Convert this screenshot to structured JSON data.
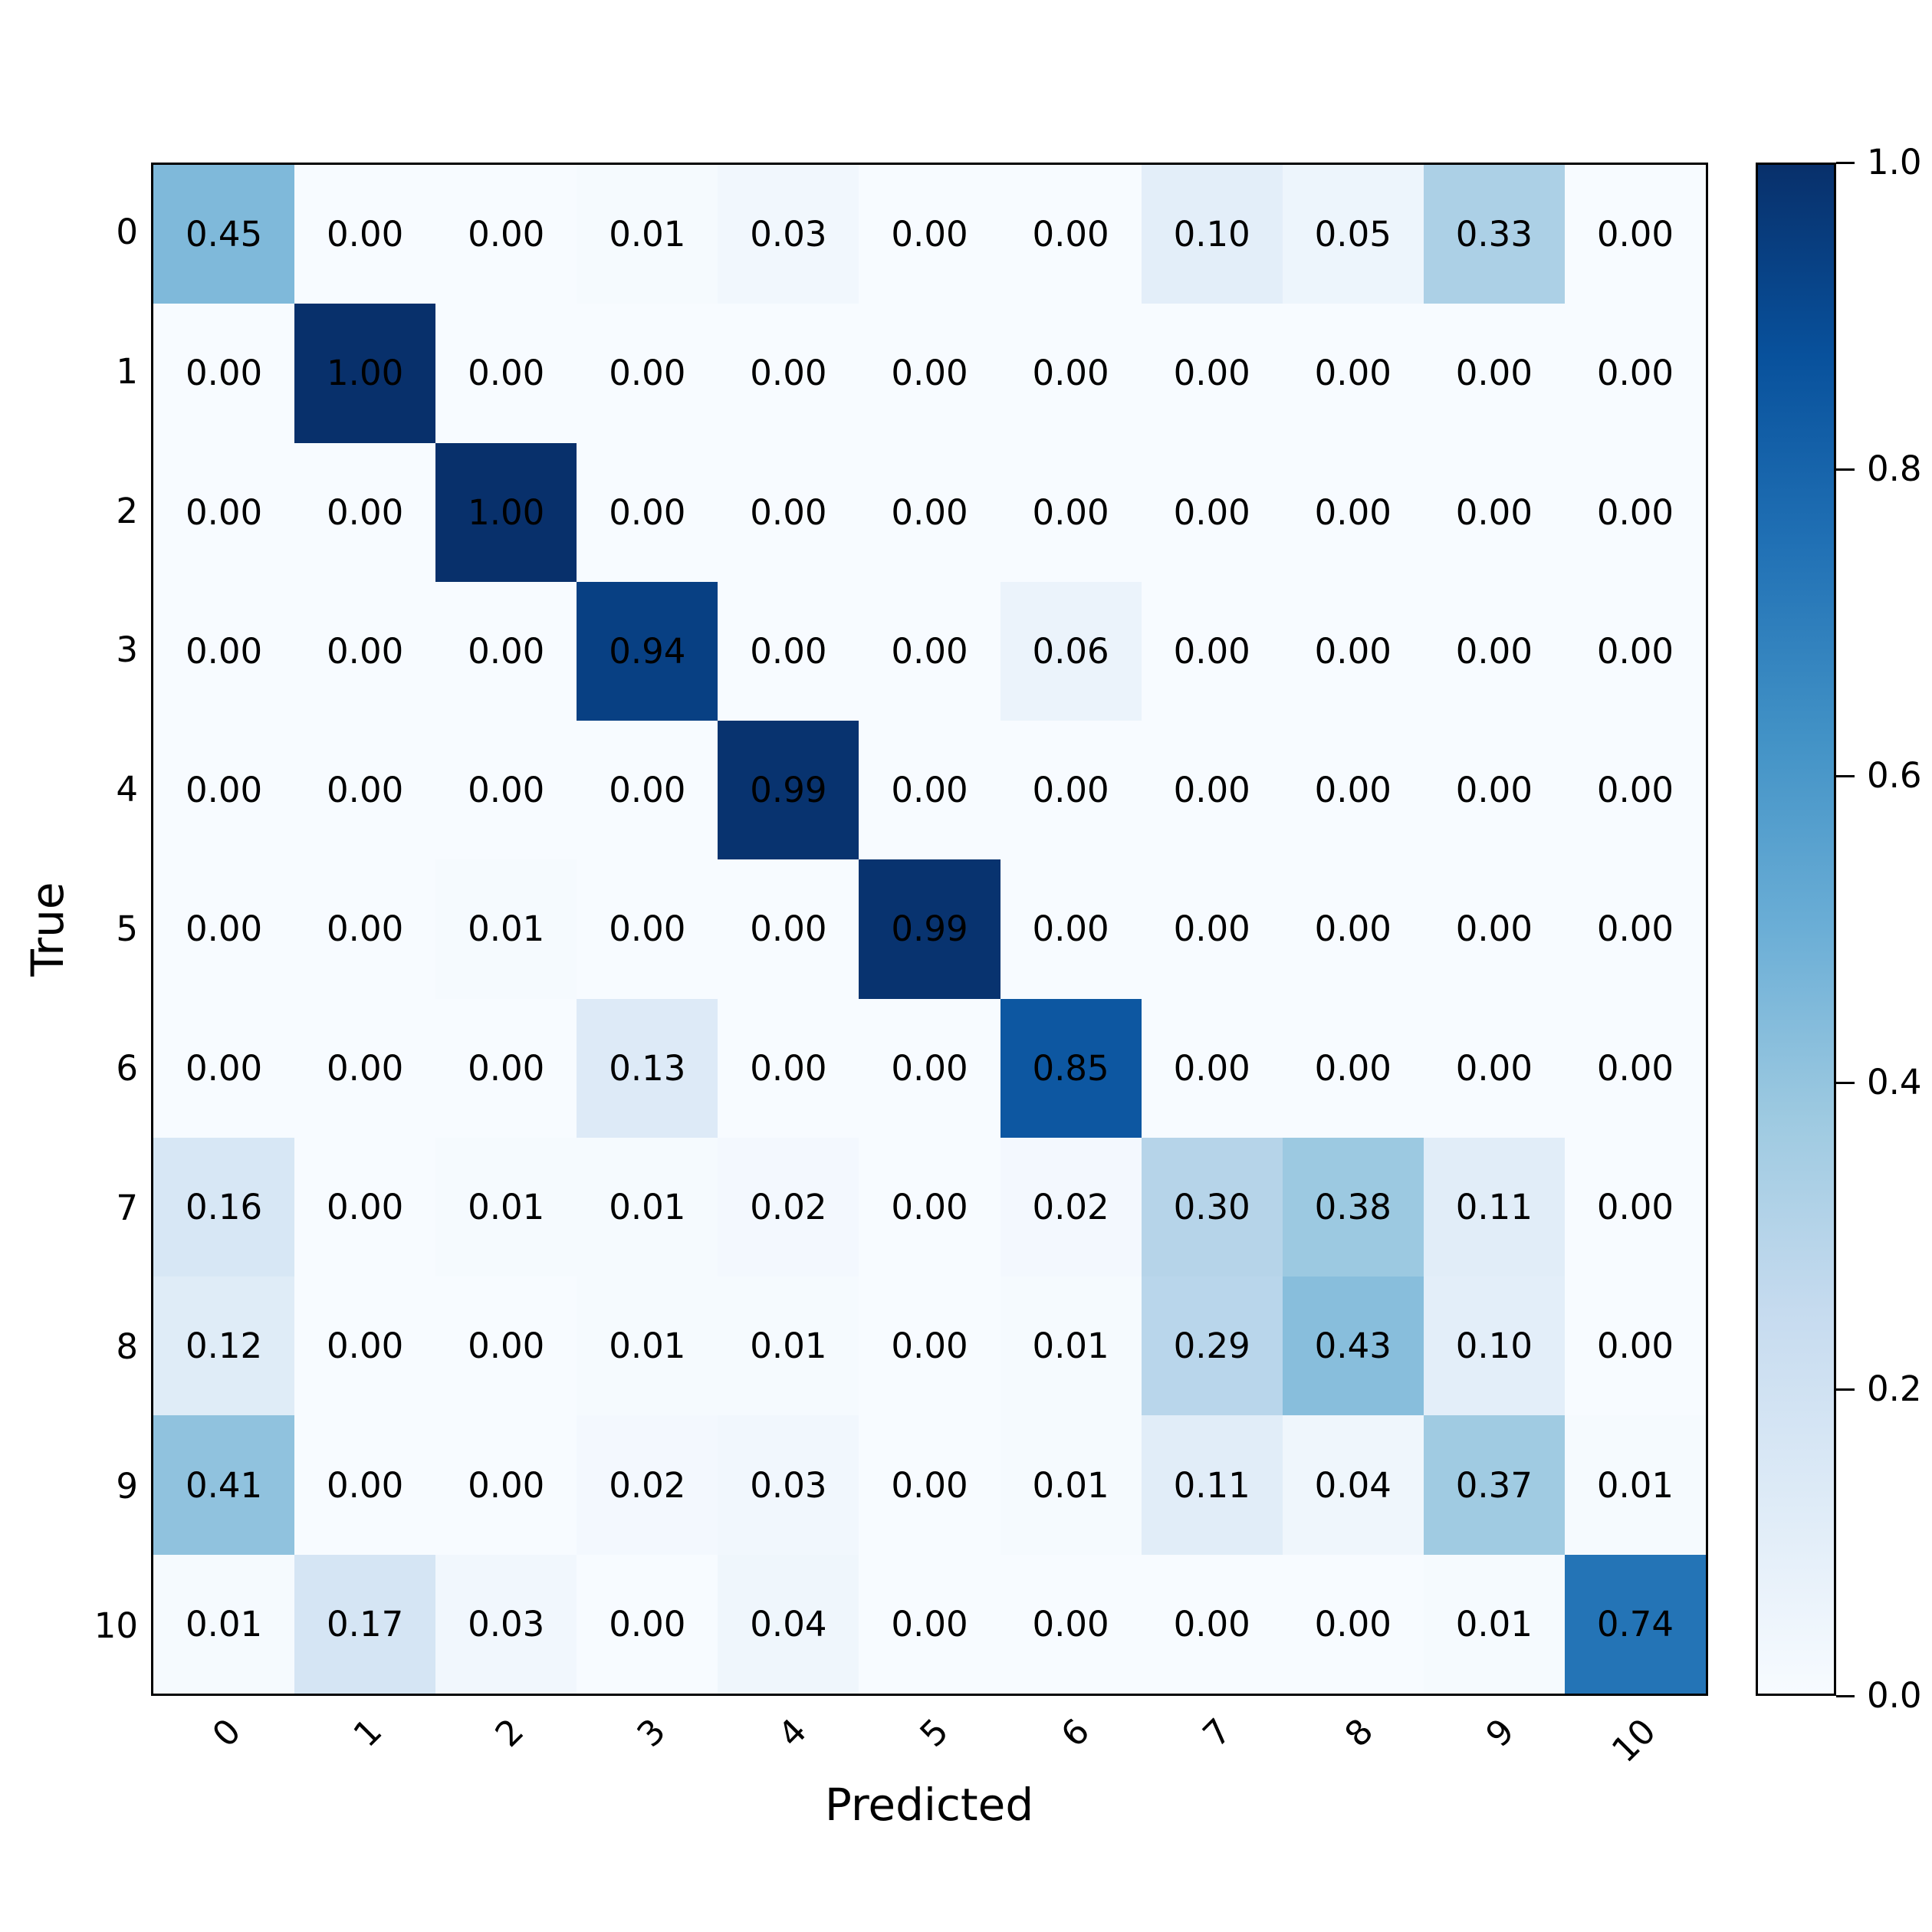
{
  "colors": {
    "background": "#ffffff",
    "cell_text": "#000000",
    "spine": "#000000"
  },
  "chart_data": {
    "type": "heatmap",
    "title": "",
    "xlabel": "Predicted",
    "ylabel": "True",
    "x_tick_labels": [
      "0",
      "1",
      "2",
      "3",
      "4",
      "5",
      "6",
      "7",
      "8",
      "9",
      "10"
    ],
    "y_tick_labels": [
      "0",
      "1",
      "2",
      "3",
      "4",
      "5",
      "6",
      "7",
      "8",
      "9",
      "10"
    ],
    "value_decimals": 2,
    "matrix": [
      [
        0.45,
        0.0,
        0.0,
        0.01,
        0.03,
        0.0,
        0.0,
        0.1,
        0.05,
        0.33,
        0.0
      ],
      [
        0.0,
        1.0,
        0.0,
        0.0,
        0.0,
        0.0,
        0.0,
        0.0,
        0.0,
        0.0,
        0.0
      ],
      [
        0.0,
        0.0,
        1.0,
        0.0,
        0.0,
        0.0,
        0.0,
        0.0,
        0.0,
        0.0,
        0.0
      ],
      [
        0.0,
        0.0,
        0.0,
        0.94,
        0.0,
        0.0,
        0.06,
        0.0,
        0.0,
        0.0,
        0.0
      ],
      [
        0.0,
        0.0,
        0.0,
        0.0,
        0.99,
        0.0,
        0.0,
        0.0,
        0.0,
        0.0,
        0.0
      ],
      [
        0.0,
        0.0,
        0.01,
        0.0,
        0.0,
        0.99,
        0.0,
        0.0,
        0.0,
        0.0,
        0.0
      ],
      [
        0.0,
        0.0,
        0.0,
        0.13,
        0.0,
        0.0,
        0.85,
        0.0,
        0.0,
        0.0,
        0.0
      ],
      [
        0.16,
        0.0,
        0.01,
        0.01,
        0.02,
        0.0,
        0.02,
        0.3,
        0.38,
        0.11,
        0.0
      ],
      [
        0.12,
        0.0,
        0.0,
        0.01,
        0.01,
        0.0,
        0.01,
        0.29,
        0.43,
        0.1,
        0.0
      ],
      [
        0.41,
        0.0,
        0.0,
        0.02,
        0.03,
        0.0,
        0.01,
        0.11,
        0.04,
        0.37,
        0.01
      ],
      [
        0.01,
        0.17,
        0.03,
        0.0,
        0.04,
        0.0,
        0.0,
        0.0,
        0.0,
        0.01,
        0.74
      ]
    ],
    "colormap": "Blues",
    "colormap_stops": [
      {
        "pos": 0.0,
        "rgb": [
          247,
          251,
          255
        ]
      },
      {
        "pos": 0.125,
        "rgb": [
          222,
          235,
          247
        ]
      },
      {
        "pos": 0.25,
        "rgb": [
          198,
          219,
          239
        ]
      },
      {
        "pos": 0.375,
        "rgb": [
          158,
          202,
          225
        ]
      },
      {
        "pos": 0.5,
        "rgb": [
          107,
          174,
          214
        ]
      },
      {
        "pos": 0.625,
        "rgb": [
          66,
          146,
          198
        ]
      },
      {
        "pos": 0.75,
        "rgb": [
          33,
          113,
          181
        ]
      },
      {
        "pos": 0.875,
        "rgb": [
          8,
          81,
          156
        ]
      },
      {
        "pos": 1.0,
        "rgb": [
          8,
          48,
          107
        ]
      }
    ],
    "colorbar": {
      "min": 0.0,
      "max": 1.0,
      "tick_values": [
        0.0,
        0.2,
        0.4,
        0.6,
        0.8,
        1.0
      ],
      "tick_labels": [
        "0.0",
        "0.2",
        "0.4",
        "0.6",
        "0.8",
        "1.0"
      ],
      "position": "right"
    },
    "grid": false,
    "legend": false
  }
}
